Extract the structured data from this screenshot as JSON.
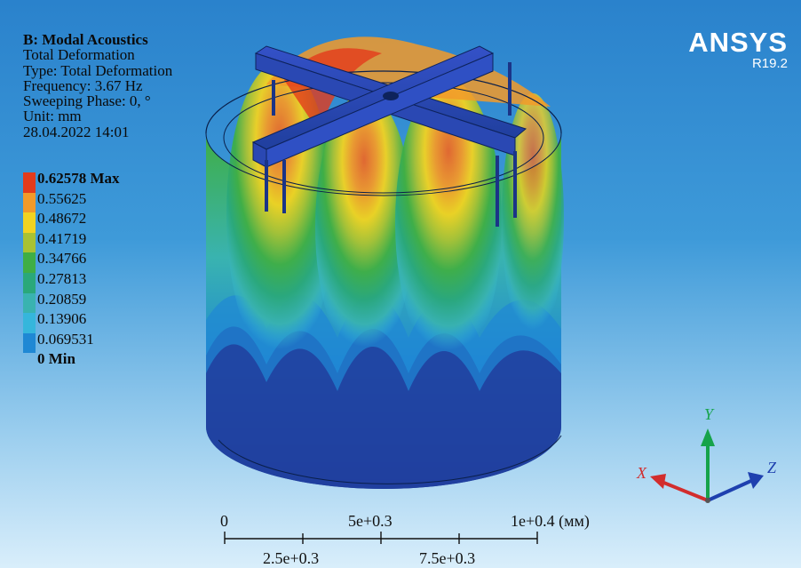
{
  "branding": {
    "logo": "ANSYS",
    "version": "R19.2"
  },
  "info": {
    "title": "B: Modal Acoustics",
    "lines": [
      "Total Deformation",
      "Type: Total Deformation",
      "Frequency: 3.67 Hz",
      "Sweeping Phase: 0, °",
      "Unit: mm",
      "28.04.2022 14:01"
    ]
  },
  "legend": [
    {
      "label": "0.62578 Max",
      "color": "#e33b1c",
      "bold": true
    },
    {
      "label": "0.55625",
      "color": "#f29a2a",
      "bold": false
    },
    {
      "label": "0.48672",
      "color": "#f2d321",
      "bold": false
    },
    {
      "label": "0.41719",
      "color": "#a9c233",
      "bold": false
    },
    {
      "label": "0.34766",
      "color": "#3fae45",
      "bold": false
    },
    {
      "label": "0.27813",
      "color": "#2aa87a",
      "bold": false
    },
    {
      "label": "0.20859",
      "color": "#39b3b0",
      "bold": false
    },
    {
      "label": "0.13906",
      "color": "#35b6dc",
      "bold": false
    },
    {
      "label": "0.069531",
      "color": "#1f88d4",
      "bold": false
    },
    {
      "label": "0 Min",
      "color": "#203f9e",
      "bold": true
    }
  ],
  "scale": {
    "top_labels": [
      "0",
      "5e+0.3",
      "1e+0.4 (мм)"
    ],
    "bottom_labels": [
      "2.5e+0.3",
      "7.5e+0.3"
    ]
  },
  "triad": {
    "x": "X",
    "y": "Y",
    "z": "Z"
  }
}
